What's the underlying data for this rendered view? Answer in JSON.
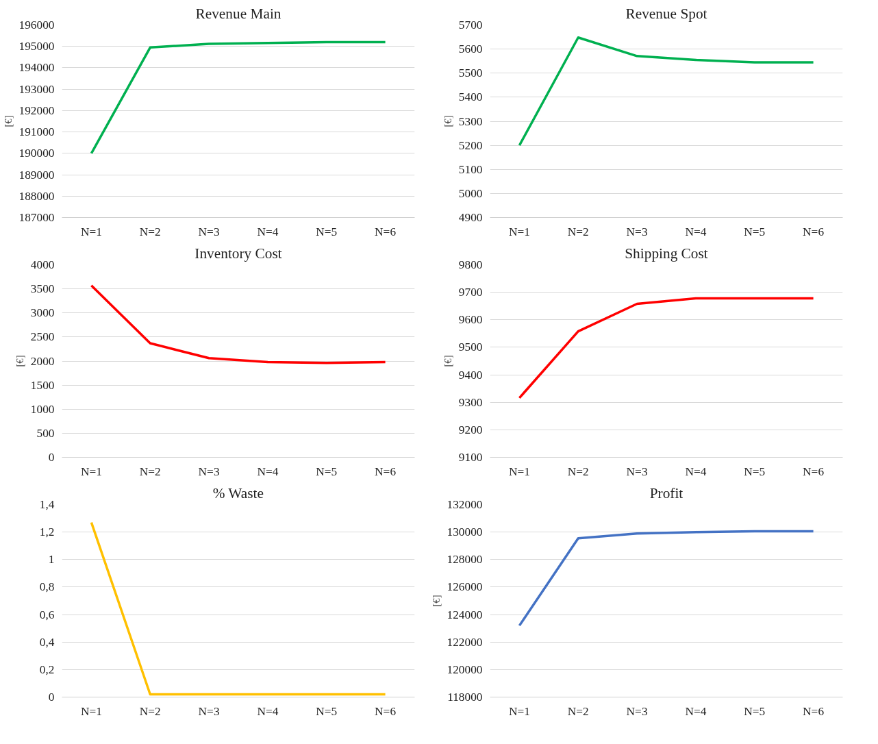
{
  "chart_data": [
    {
      "type": "line",
      "title": "Revenue Main",
      "ylabel": "[€]",
      "categories": [
        "N=1",
        "N=2",
        "N=3",
        "N=4",
        "N=5",
        "N=6"
      ],
      "series": [
        {
          "color": "#00b050",
          "values": [
            190000,
            194950,
            195120,
            195160,
            195200,
            195200
          ]
        }
      ],
      "ylim": [
        187000,
        196000
      ],
      "yticks": [
        187000,
        188000,
        189000,
        190000,
        191000,
        192000,
        193000,
        194000,
        195000,
        196000
      ],
      "grid": "y",
      "line_style": "solid"
    },
    {
      "type": "line",
      "title": "Revenue Spot",
      "ylabel": "[€]",
      "categories": [
        "N=1",
        "N=2",
        "N=3",
        "N=4",
        "N=5",
        "N=6"
      ],
      "series": [
        {
          "color": "#00b050",
          "values": [
            5200,
            5648,
            5571,
            5555,
            5545,
            5545
          ]
        }
      ],
      "ylim": [
        4900,
        5700
      ],
      "yticks": [
        4900,
        5000,
        5100,
        5200,
        5300,
        5400,
        5500,
        5600,
        5700
      ],
      "grid": "y",
      "line_style": "solid"
    },
    {
      "type": "line",
      "title": "Inventory Cost",
      "ylabel": "[€]",
      "categories": [
        "N=1",
        "N=2",
        "N=3",
        "N=4",
        "N=5",
        "N=6"
      ],
      "series": [
        {
          "color": "#ff0000",
          "values": [
            3570,
            2370,
            2060,
            1980,
            1960,
            1980
          ]
        }
      ],
      "ylim": [
        0,
        4000
      ],
      "yticks": [
        0,
        500,
        1000,
        1500,
        2000,
        2500,
        3000,
        3500,
        4000
      ],
      "grid": "y",
      "line_style": "solid"
    },
    {
      "type": "line",
      "title": "Shipping Cost",
      "ylabel": "[€]",
      "categories": [
        "N=1",
        "N=2",
        "N=3",
        "N=4",
        "N=5",
        "N=6"
      ],
      "series": [
        {
          "color": "#ff0000",
          "values": [
            9316,
            9558,
            9658,
            9678,
            9678,
            9678
          ]
        }
      ],
      "ylim": [
        9100,
        9800
      ],
      "yticks": [
        9100,
        9200,
        9300,
        9400,
        9500,
        9600,
        9700,
        9800
      ],
      "grid": "y",
      "line_style": "solid"
    },
    {
      "type": "line",
      "title": "% Waste",
      "categories": [
        "N=1",
        "N=2",
        "N=3",
        "N=4",
        "N=5",
        "N=6"
      ],
      "series": [
        {
          "color": "#ffc000",
          "values": [
            1.27,
            0.02,
            0.02,
            0.02,
            0.02,
            0.02
          ]
        }
      ],
      "ylim": [
        0,
        1.4
      ],
      "yticks": [
        0,
        {
          "value": 0.2,
          "label": "0,2"
        },
        {
          "value": 0.4,
          "label": "0,4"
        },
        {
          "value": 0.6,
          "label": "0,6"
        },
        {
          "value": 0.8,
          "label": "0,8"
        },
        1,
        {
          "value": 1.2,
          "label": "1,2"
        },
        {
          "value": 1.4,
          "label": "1,4"
        }
      ],
      "grid": "y",
      "line_style": "solid"
    },
    {
      "type": "line",
      "title": "Profit",
      "ylabel": "[€]",
      "categories": [
        "N=1",
        "N=2",
        "N=3",
        "N=4",
        "N=5",
        "N=6"
      ],
      "series": [
        {
          "color": "#4472c4",
          "values": [
            123200,
            129550,
            129890,
            130000,
            130060,
            130060
          ]
        }
      ],
      "ylim": [
        118000,
        132000
      ],
      "yticks": [
        118000,
        120000,
        122000,
        124000,
        126000,
        128000,
        130000,
        132000
      ],
      "grid": "y",
      "line_style": "solid"
    }
  ]
}
